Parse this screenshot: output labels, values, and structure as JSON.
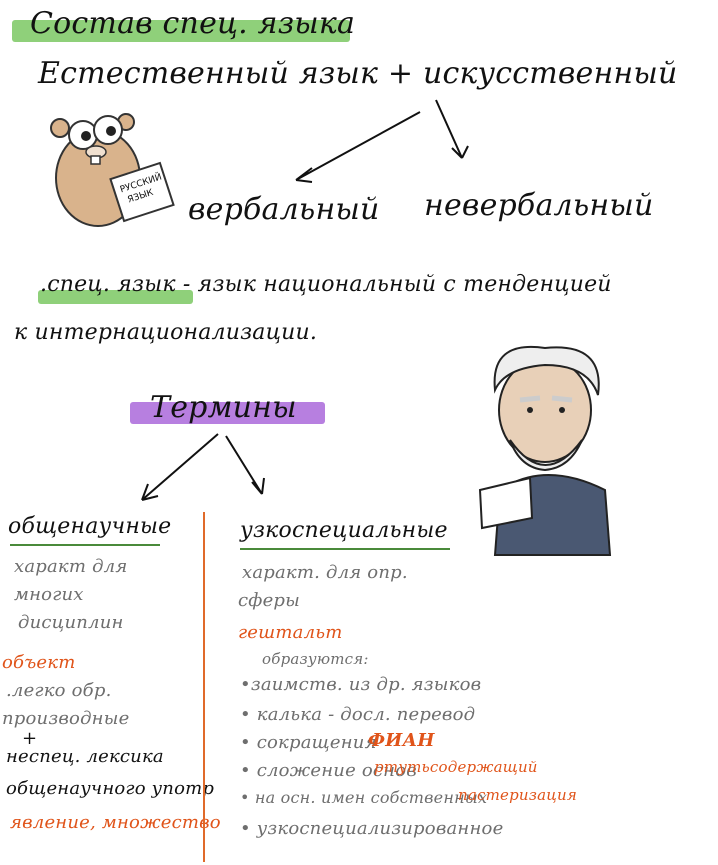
{
  "title": "Состав спец. языка",
  "line1": "Естественный язык + искусственный",
  "branch_left": "вербальный",
  "branch_right": "невербальный",
  "definition_line1": ".спец. язык - язык национальный с тенденцией",
  "definition_line2": "к интернационализации.",
  "terms_heading": "Термины",
  "left_column": {
    "heading": "общенаучные",
    "desc": [
      "характ для",
      "многих",
      "дисциплин"
    ],
    "object_label": "объект",
    "items": [
      ".легко обр.",
      "производные",
      "+",
      "неспец. лексика",
      "общенаучного употр"
    ],
    "footer": "явление, множество"
  },
  "right_column": {
    "heading": "узкоспециальные",
    "desc": [
      "характ. для опр.",
      "сферы"
    ],
    "gestalt_label": "гештальт",
    "gestalt_sub": "образуются:",
    "bullets": [
      {
        "text": "•заимств. из др. языков",
        "tag": ""
      },
      {
        "text": "• калька - досл. перевод",
        "tag": ""
      },
      {
        "text": "• сокращения",
        "tag": "ФИАН"
      },
      {
        "text": "• сложение основ",
        "tag": "ртутьсодержащий"
      },
      {
        "text": "• на осн. имен собственных",
        "tag": "пастеризация"
      },
      {
        "text": "• узкоспециализированное",
        "tag": ""
      }
    ]
  },
  "mascot_left_book": "русский язык",
  "colors": {
    "highlight_green": "#8fd07a",
    "highlight_purple": "#b77fe0",
    "accent_orange": "#e0541a",
    "divider": "#e06a2a"
  }
}
